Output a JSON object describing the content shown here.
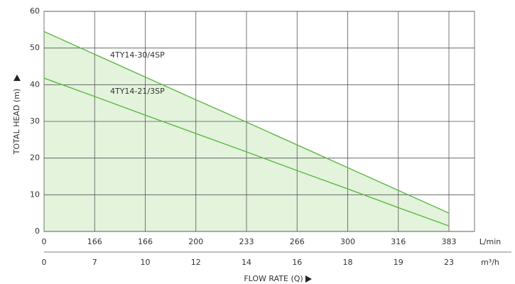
{
  "chart_data": {
    "type": "line",
    "ylabel": "TOTAL HEAD (m)",
    "xlabel": "FLOW RATE (Q)",
    "categories": [
      "0",
      "166",
      "166",
      "200",
      "233",
      "266",
      "300",
      "316",
      "383"
    ],
    "categories_unit": "L/min",
    "categories_2": [
      "0",
      "7",
      "10",
      "12",
      "14",
      "16",
      "18",
      "19",
      "23"
    ],
    "categories_2_unit": "m³/h",
    "series": [
      {
        "name": "4TY14-30/4SP",
        "color": "#5db845",
        "fill": "#e3f3dc",
        "values": [
          54.5,
          48.3,
          42.1,
          35.9,
          29.8,
          23.6,
          17.4,
          11.2,
          5.0
        ]
      },
      {
        "name": "4TY14-21/3SP",
        "color": "#5db845",
        "values": [
          41.8,
          36.8,
          31.7,
          26.7,
          21.7,
          16.6,
          11.6,
          6.5,
          1.5
        ]
      }
    ],
    "ylim": [
      0,
      60
    ],
    "yticks": [
      0,
      10,
      20,
      30,
      40,
      50,
      60
    ],
    "grid": true
  }
}
